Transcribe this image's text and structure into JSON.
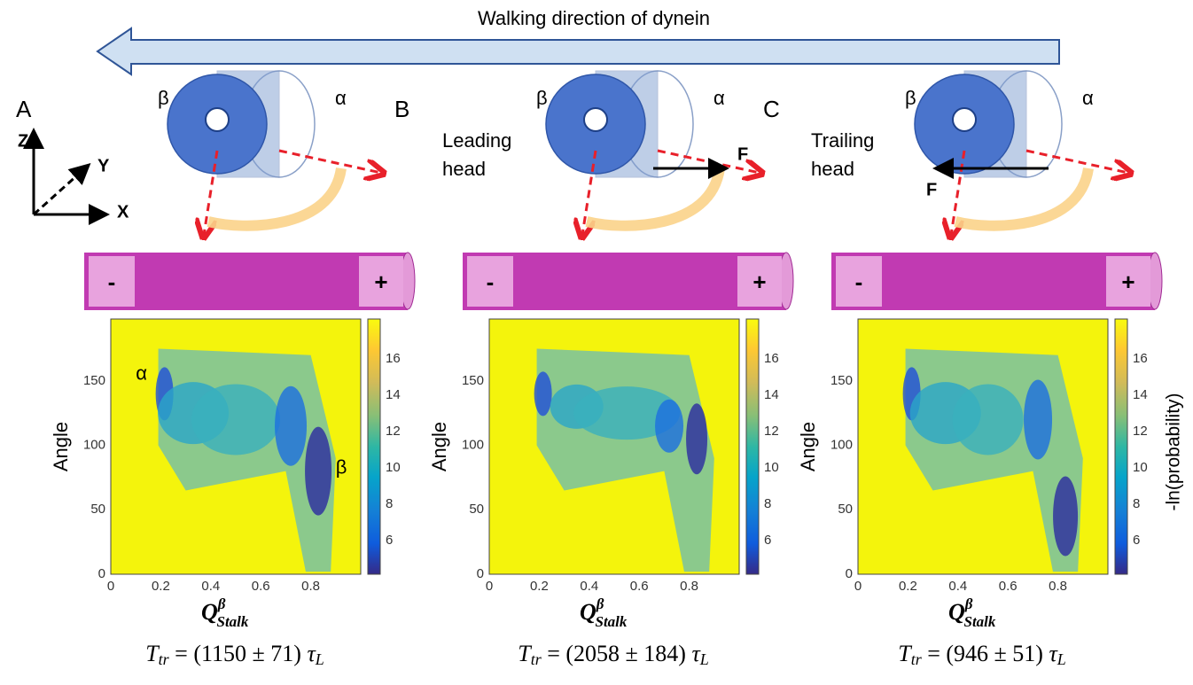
{
  "header": {
    "arrow_label": "Walking direction of dynein"
  },
  "axes_legend": {
    "z": "Z",
    "y": "Y",
    "x": "X"
  },
  "panels": [
    {
      "letter": "A",
      "ring_labels": [
        "β",
        "α"
      ],
      "microtubule": [
        "-",
        "+"
      ],
      "plot": {
        "xticks": [
          "0",
          "0.2",
          "0.4",
          "0.6",
          "0.8"
        ],
        "yticks": [
          "0",
          "50",
          "100",
          "150"
        ],
        "colorbar_ticks": [
          "6",
          "8",
          "10",
          "12",
          "14",
          "16"
        ],
        "ylabel": "Angle",
        "xlabel": {
          "base": "Q",
          "sup": "β",
          "sub": "Stalk"
        },
        "annotations": [
          "α",
          "β"
        ]
      },
      "formula": {
        "lhs": "T",
        "lhs_sub": "tr",
        "rhs": " = (1150 ± 71) ",
        "tau": "τ",
        "tau_sub": "L"
      }
    },
    {
      "letter": "B",
      "ring_labels": [
        "β",
        "α"
      ],
      "head_label": [
        "Leading",
        "head"
      ],
      "force": "F",
      "microtubule": [
        "-",
        "+"
      ],
      "plot": {
        "xticks": [
          "0",
          "0.2",
          "0.4",
          "0.6",
          "0.8"
        ],
        "yticks": [
          "0",
          "50",
          "100",
          "150"
        ],
        "colorbar_ticks": [
          "6",
          "8",
          "10",
          "12",
          "14",
          "16"
        ],
        "ylabel": "Angle",
        "xlabel": {
          "base": "Q",
          "sup": "β",
          "sub": "Stalk"
        }
      },
      "formula": {
        "lhs": "T",
        "lhs_sub": "tr",
        "rhs": " = (2058 ± 184) ",
        "tau": "τ",
        "tau_sub": "L"
      }
    },
    {
      "letter": "C",
      "ring_labels": [
        "β",
        "α"
      ],
      "head_label": [
        "Trailing",
        "head"
      ],
      "force": "F",
      "microtubule": [
        "-",
        "+"
      ],
      "plot": {
        "xticks": [
          "0",
          "0.2",
          "0.4",
          "0.6",
          "0.8"
        ],
        "yticks": [
          "0",
          "50",
          "100",
          "150"
        ],
        "colorbar_ticks": [
          "6",
          "8",
          "10",
          "12",
          "14",
          "16"
        ],
        "ylabel": "Angle",
        "xlabel": {
          "base": "Q",
          "sup": "β",
          "sub": "Stalk"
        }
      },
      "formula": {
        "lhs": "T",
        "lhs_sub": "tr",
        "rhs": " = (946 ± 51) ",
        "tau": "τ",
        "tau_sub": "L"
      }
    }
  ],
  "colorbar_label": "-ln(probability)"
}
